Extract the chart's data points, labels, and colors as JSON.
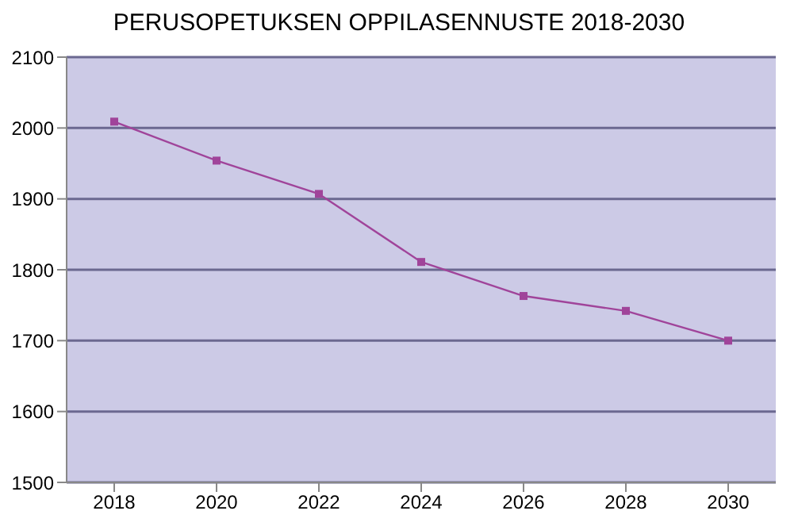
{
  "chart_data": {
    "type": "line",
    "title": "PERUSOPETUKSEN OPPILASENNUSTE 2018-2030",
    "categories": [
      "2018",
      "2020",
      "2022",
      "2024",
      "2026",
      "2028",
      "2030"
    ],
    "series": [
      {
        "color": "#a0449a",
        "values": [
          2009,
          1954,
          1907,
          1811,
          1763,
          1742,
          1700
        ]
      }
    ],
    "ylim": [
      1500,
      2100
    ],
    "yticks": [
      1500,
      1600,
      1700,
      1800,
      1900,
      2000,
      2100
    ],
    "grid": "y",
    "marker": "square",
    "legend": false
  }
}
